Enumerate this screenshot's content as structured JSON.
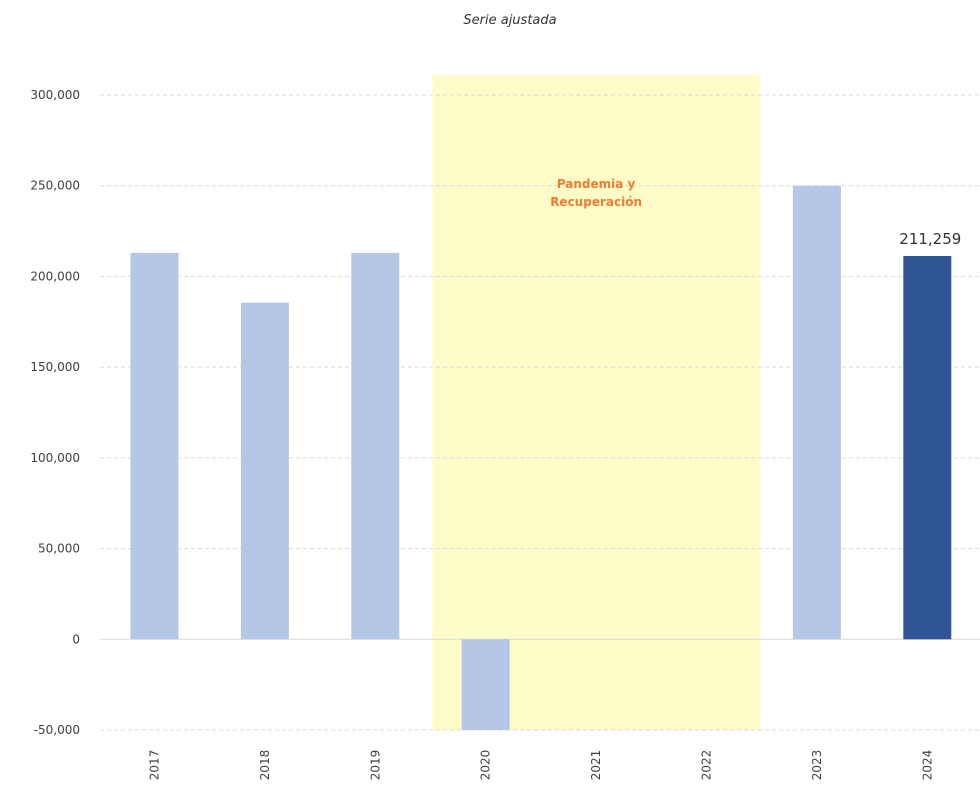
{
  "chart_data": {
    "type": "bar",
    "subtitle": "Serie ajustada",
    "categories": [
      "2017",
      "2018",
      "2019",
      "2020",
      "2021",
      "2022",
      "2023",
      "2024"
    ],
    "values": [
      213000,
      185500,
      213000,
      -50000,
      null,
      null,
      250000,
      211259
    ],
    "ylim": [
      -50000,
      300000
    ],
    "yticks": [
      -50000,
      0,
      50000,
      100000,
      150000,
      200000,
      250000,
      300000
    ],
    "ytick_labels": [
      "-50,000",
      "0",
      "50,000",
      "100,000",
      "150,000",
      "200,000",
      "250,000",
      "300,000"
    ],
    "grid": true,
    "highlight_category": "2024",
    "data_labels": [
      {
        "category": "2024",
        "text": "211,259"
      }
    ],
    "shaded_region": {
      "from": "2020",
      "to": "2022",
      "label_lines": [
        "Pandemia y",
        "Recuperación"
      ]
    },
    "colors": {
      "bar": "#b4c7e7",
      "bar_highlight": "#2f5597",
      "shade": "#fdfcc8",
      "annotation_text": "#ed7d31",
      "grid": "#d9d9d9",
      "zero_line": "#d9d9d9"
    }
  }
}
